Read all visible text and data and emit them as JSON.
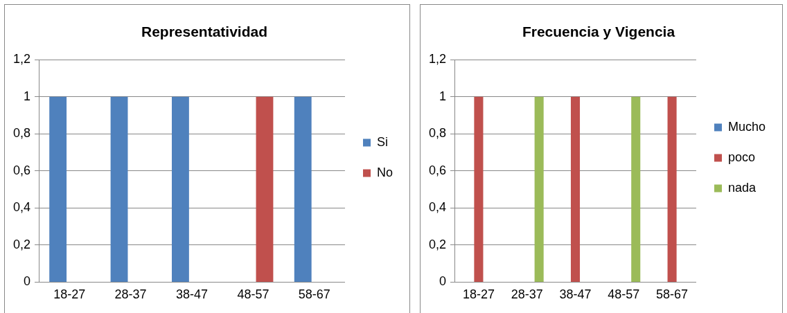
{
  "chart_data": [
    {
      "type": "bar",
      "title": "Representatividad",
      "categories": [
        "18-27",
        "28-37",
        "38-47",
        "48-57",
        "58-67"
      ],
      "series": [
        {
          "name": "Si",
          "color": "#4f81bd",
          "values": [
            1,
            1,
            1,
            0,
            1
          ]
        },
        {
          "name": "No",
          "color": "#c0504d",
          "values": [
            0,
            0,
            0,
            1,
            0
          ]
        }
      ],
      "ylim": [
        0,
        1.2
      ],
      "yticks": [
        {
          "value": 0,
          "label": "0"
        },
        {
          "value": 0.2,
          "label": "0,2"
        },
        {
          "value": 0.4,
          "label": "0,4"
        },
        {
          "value": 0.6,
          "label": "0,6"
        },
        {
          "value": 0.8,
          "label": "0,8"
        },
        {
          "value": 1,
          "label": "1"
        },
        {
          "value": 1.2,
          "label": "1,2"
        }
      ],
      "grid": "y",
      "legend": "right"
    },
    {
      "type": "bar",
      "title": "Frecuencia y Vigencia",
      "categories": [
        "18-27",
        "28-37",
        "38-47",
        "48-57",
        "58-67"
      ],
      "series": [
        {
          "name": "Mucho",
          "color": "#4f81bd",
          "values": [
            0,
            0,
            0,
            0,
            0
          ]
        },
        {
          "name": "poco",
          "color": "#c0504d",
          "values": [
            1,
            0,
            1,
            0,
            1
          ]
        },
        {
          "name": "nada",
          "color": "#9bbb59",
          "values": [
            0,
            1,
            0,
            1,
            0
          ]
        }
      ],
      "ylim": [
        0,
        1.2
      ],
      "yticks": [
        {
          "value": 0,
          "label": "0"
        },
        {
          "value": 0.2,
          "label": "0,2"
        },
        {
          "value": 0.4,
          "label": "0,4"
        },
        {
          "value": 0.6,
          "label": "0,6"
        },
        {
          "value": 0.8,
          "label": "0,8"
        },
        {
          "value": 1,
          "label": "1"
        },
        {
          "value": 1.2,
          "label": "1,2"
        }
      ],
      "grid": "y",
      "legend": "right"
    }
  ]
}
